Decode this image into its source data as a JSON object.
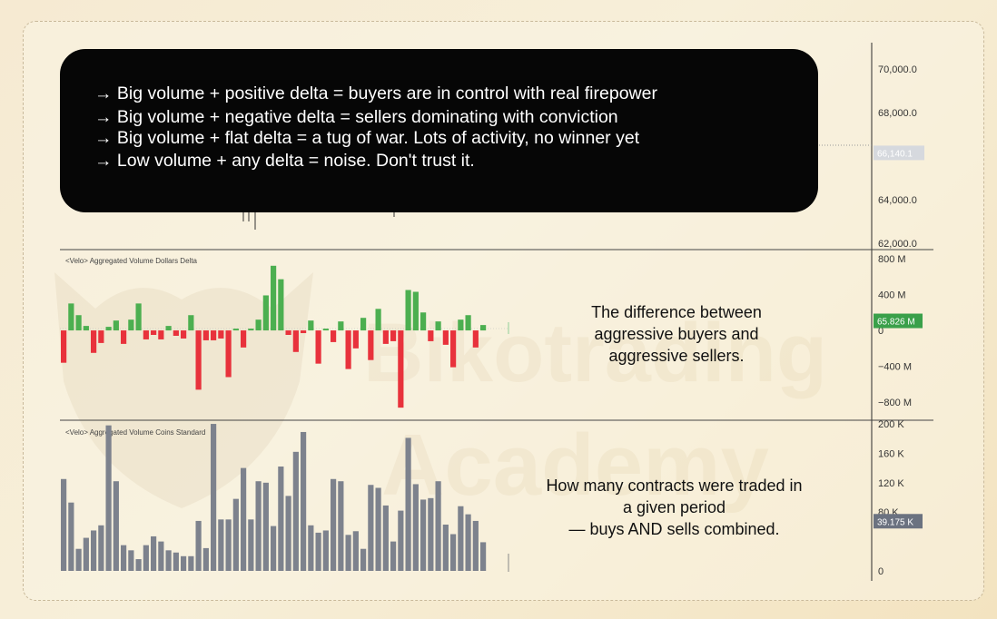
{
  "bullets": [
    "→ Big volume + positive delta = buyers are in control with real firepower",
    "→ Big volume + negative delta = sellers dominating with conviction",
    "→ Big volume + flat delta = a tug of war. Lots of activity, no winner yet",
    "→ Low volume + any delta = noise. Don't trust it."
  ],
  "annotations": {
    "delta": [
      "The difference between",
      "aggressive buyers and",
      "aggressive sellers."
    ],
    "volume": [
      "How many contracts were traded in",
      "a given period",
      "— buys AND sells combined."
    ]
  },
  "watermark": [
    "Bikotrading",
    "Academy"
  ],
  "colors": {
    "positive": "#4caf50",
    "negative": "#e8323c",
    "volume": "#7d828d",
    "box": "#060606",
    "price_tag": "#d6d9de",
    "delta_tag": "#3aa04a",
    "volume_tag": "#6b7280"
  },
  "chart_data": [
    {
      "type": "line",
      "title": "",
      "y_ticks": [
        "70,000.0",
        "68,000.0",
        "64,000.0",
        "62,000.0"
      ],
      "ylim": [
        61700,
        71200
      ],
      "current_value": 66140.1,
      "current_label": "66,140.1"
    },
    {
      "type": "bar",
      "title": "<Velo> Aggregated Volume Dollars Delta",
      "y_ticks": [
        "800 M",
        "400 M",
        "0",
        "−400 M",
        "−800 M"
      ],
      "y_tick_values": [
        800,
        400,
        0,
        -400,
        -800
      ],
      "ylim": [
        -1000,
        900
      ],
      "unit": "M",
      "current_label": "65.826 M",
      "current_value": 65.826,
      "values": [
        -360,
        300,
        170,
        50,
        -250,
        -140,
        40,
        110,
        -150,
        120,
        300,
        -100,
        -50,
        -100,
        50,
        -60,
        -90,
        170,
        -660,
        -110,
        -110,
        -90,
        -520,
        20,
        -190,
        20,
        120,
        390,
        720,
        570,
        -50,
        -240,
        -30,
        110,
        -370,
        20,
        -130,
        100,
        -430,
        -200,
        140,
        -330,
        240,
        -150,
        -120,
        -860,
        450,
        430,
        200,
        -120,
        100,
        -160,
        -410,
        120,
        170,
        -190,
        60
      ]
    },
    {
      "type": "bar",
      "title": "<Velo> Aggregated Volume Coins Standard",
      "y_ticks": [
        "200 K",
        "160 K",
        "120 K",
        "80 K",
        "0"
      ],
      "y_tick_values": [
        200,
        160,
        120,
        80,
        0
      ],
      "ylim": [
        0,
        205
      ],
      "unit": "K",
      "current_label": "39.175 K",
      "current_value": 39.175,
      "values": [
        125,
        93,
        30,
        45,
        55,
        62,
        198,
        122,
        35,
        28,
        16,
        35,
        47,
        40,
        28,
        25,
        20,
        20,
        68,
        31,
        200,
        70,
        70,
        98,
        140,
        70,
        122,
        120,
        61,
        142,
        102,
        162,
        189,
        62,
        52,
        55,
        125,
        122,
        49,
        54,
        30,
        117,
        113,
        89,
        40,
        82,
        181,
        118,
        97,
        99,
        122,
        63,
        50,
        88,
        77,
        68,
        39
      ]
    }
  ]
}
